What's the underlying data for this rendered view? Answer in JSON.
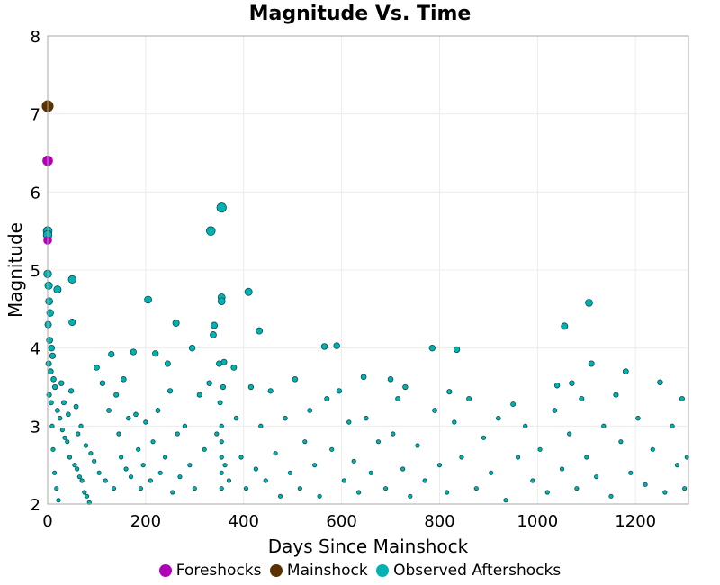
{
  "chart_data": {
    "type": "scatter",
    "title": "Magnitude Vs. Time",
    "xlabel": "Days Since Mainshock",
    "ylabel": "Magnitude",
    "xlim": [
      0,
      1308
    ],
    "ylim": [
      2,
      8
    ],
    "xticks": [
      0,
      200,
      400,
      600,
      800,
      1000,
      1200
    ],
    "yticks": [
      2,
      3,
      4,
      5,
      6,
      7,
      8
    ],
    "grid": true,
    "legend_position": "bottom",
    "series": [
      {
        "name": "Foreshocks",
        "color": "#b000b8",
        "points": [
          [
            0,
            6.4
          ],
          [
            0,
            5.38
          ]
        ]
      },
      {
        "name": "Mainshock",
        "color": "#5c3100",
        "points": [
          [
            0,
            7.1
          ]
        ]
      },
      {
        "name": "Observed Aftershocks",
        "color": "#00b2b2",
        "points": [
          [
            0,
            5.5
          ],
          [
            0,
            5.45
          ],
          [
            355,
            5.8
          ],
          [
            333,
            5.5
          ],
          [
            50,
            4.88
          ],
          [
            20,
            4.75
          ],
          [
            205,
            4.62
          ],
          [
            355,
            4.65
          ],
          [
            355,
            4.6
          ],
          [
            410,
            4.72
          ],
          [
            1105,
            4.58
          ],
          [
            1055,
            4.28
          ],
          [
            262,
            4.32
          ],
          [
            50,
            4.33
          ],
          [
            340,
            4.29
          ],
          [
            432,
            4.22
          ],
          [
            338,
            4.17
          ],
          [
            565,
            4.02
          ],
          [
            590,
            4.03
          ],
          [
            785,
            4.0
          ],
          [
            835,
            3.98
          ],
          [
            295,
            4.0
          ],
          [
            175,
            3.95
          ],
          [
            220,
            3.93
          ],
          [
            130,
            3.92
          ],
          [
            1110,
            3.8
          ],
          [
            1180,
            3.7
          ],
          [
            1250,
            3.56
          ],
          [
            1295,
            3.35
          ],
          [
            645,
            3.63
          ],
          [
            700,
            3.6
          ],
          [
            730,
            3.5
          ],
          [
            820,
            3.44
          ],
          [
            950,
            3.28
          ],
          [
            1040,
            3.52
          ],
          [
            1070,
            3.55
          ],
          [
            1160,
            3.4
          ],
          [
            350,
            3.8
          ],
          [
            360,
            3.82
          ],
          [
            380,
            3.75
          ],
          [
            245,
            3.8
          ],
          [
            0,
            4.95
          ],
          [
            2,
            4.8
          ],
          [
            3,
            4.6
          ],
          [
            5,
            4.45
          ],
          [
            1,
            4.3
          ],
          [
            4,
            4.1
          ],
          [
            8,
            4.0
          ],
          [
            10,
            3.9
          ],
          [
            2,
            3.8
          ],
          [
            6,
            3.7
          ],
          [
            12,
            3.6
          ],
          [
            15,
            3.5
          ],
          [
            3,
            3.4
          ],
          [
            7,
            3.3
          ],
          [
            20,
            3.2
          ],
          [
            25,
            3.1
          ],
          [
            9,
            3.0
          ],
          [
            30,
            2.95
          ],
          [
            35,
            2.85
          ],
          [
            40,
            2.8
          ],
          [
            11,
            2.7
          ],
          [
            45,
            2.6
          ],
          [
            55,
            2.5
          ],
          [
            60,
            2.45
          ],
          [
            14,
            2.4
          ],
          [
            65,
            2.35
          ],
          [
            70,
            2.3
          ],
          [
            18,
            2.2
          ],
          [
            75,
            2.15
          ],
          [
            80,
            2.1
          ],
          [
            22,
            2.05
          ],
          [
            85,
            2.02
          ],
          [
            28,
            3.55
          ],
          [
            33,
            3.3
          ],
          [
            42,
            3.15
          ],
          [
            48,
            3.45
          ],
          [
            58,
            3.25
          ],
          [
            62,
            2.9
          ],
          [
            68,
            3.0
          ],
          [
            78,
            2.75
          ],
          [
            88,
            2.65
          ],
          [
            95,
            2.55
          ],
          [
            100,
            3.75
          ],
          [
            105,
            2.4
          ],
          [
            112,
            3.55
          ],
          [
            118,
            2.3
          ],
          [
            125,
            3.2
          ],
          [
            135,
            2.2
          ],
          [
            140,
            3.4
          ],
          [
            145,
            2.9
          ],
          [
            150,
            2.6
          ],
          [
            155,
            3.6
          ],
          [
            160,
            2.45
          ],
          [
            165,
            3.1
          ],
          [
            170,
            2.35
          ],
          [
            180,
            3.15
          ],
          [
            185,
            2.7
          ],
          [
            190,
            2.2
          ],
          [
            195,
            2.5
          ],
          [
            200,
            3.05
          ],
          [
            210,
            2.3
          ],
          [
            215,
            2.8
          ],
          [
            225,
            3.2
          ],
          [
            230,
            2.4
          ],
          [
            240,
            2.6
          ],
          [
            250,
            3.45
          ],
          [
            255,
            2.15
          ],
          [
            265,
            2.9
          ],
          [
            270,
            2.35
          ],
          [
            280,
            3.0
          ],
          [
            290,
            2.5
          ],
          [
            300,
            2.2
          ],
          [
            310,
            3.4
          ],
          [
            320,
            2.7
          ],
          [
            330,
            3.55
          ],
          [
            345,
            2.9
          ],
          [
            352,
            3.3
          ],
          [
            355,
            3.0
          ],
          [
            355,
            2.8
          ],
          [
            355,
            2.6
          ],
          [
            355,
            2.4
          ],
          [
            355,
            2.2
          ],
          [
            358,
            3.5
          ],
          [
            362,
            2.5
          ],
          [
            370,
            2.3
          ],
          [
            385,
            3.1
          ],
          [
            395,
            2.6
          ],
          [
            405,
            2.2
          ],
          [
            415,
            3.5
          ],
          [
            425,
            2.45
          ],
          [
            435,
            3.0
          ],
          [
            445,
            2.3
          ],
          [
            455,
            3.45
          ],
          [
            465,
            2.65
          ],
          [
            475,
            2.1
          ],
          [
            485,
            3.1
          ],
          [
            495,
            2.4
          ],
          [
            505,
            3.6
          ],
          [
            515,
            2.2
          ],
          [
            525,
            2.8
          ],
          [
            535,
            3.2
          ],
          [
            545,
            2.5
          ],
          [
            555,
            2.1
          ],
          [
            570,
            3.35
          ],
          [
            580,
            2.7
          ],
          [
            595,
            3.45
          ],
          [
            605,
            2.3
          ],
          [
            615,
            3.05
          ],
          [
            625,
            2.55
          ],
          [
            635,
            2.15
          ],
          [
            650,
            3.1
          ],
          [
            660,
            2.4
          ],
          [
            675,
            2.8
          ],
          [
            690,
            2.2
          ],
          [
            705,
            2.9
          ],
          [
            715,
            3.35
          ],
          [
            725,
            2.45
          ],
          [
            740,
            2.1
          ],
          [
            755,
            2.75
          ],
          [
            770,
            2.3
          ],
          [
            790,
            3.2
          ],
          [
            800,
            2.5
          ],
          [
            815,
            2.15
          ],
          [
            830,
            3.05
          ],
          [
            845,
            2.6
          ],
          [
            860,
            3.35
          ],
          [
            875,
            2.2
          ],
          [
            890,
            2.85
          ],
          [
            905,
            2.4
          ],
          [
            920,
            3.1
          ],
          [
            935,
            2.05
          ],
          [
            960,
            2.6
          ],
          [
            975,
            3.0
          ],
          [
            990,
            2.3
          ],
          [
            1005,
            2.7
          ],
          [
            1020,
            2.15
          ],
          [
            1035,
            3.2
          ],
          [
            1050,
            2.45
          ],
          [
            1065,
            2.9
          ],
          [
            1080,
            2.2
          ],
          [
            1090,
            3.35
          ],
          [
            1100,
            2.6
          ],
          [
            1120,
            2.35
          ],
          [
            1135,
            3.0
          ],
          [
            1150,
            2.1
          ],
          [
            1170,
            2.8
          ],
          [
            1190,
            2.4
          ],
          [
            1205,
            3.1
          ],
          [
            1220,
            2.25
          ],
          [
            1235,
            2.7
          ],
          [
            1260,
            2.15
          ],
          [
            1275,
            3.0
          ],
          [
            1285,
            2.5
          ],
          [
            1300,
            2.2
          ],
          [
            1305,
            2.6
          ]
        ]
      }
    ]
  }
}
